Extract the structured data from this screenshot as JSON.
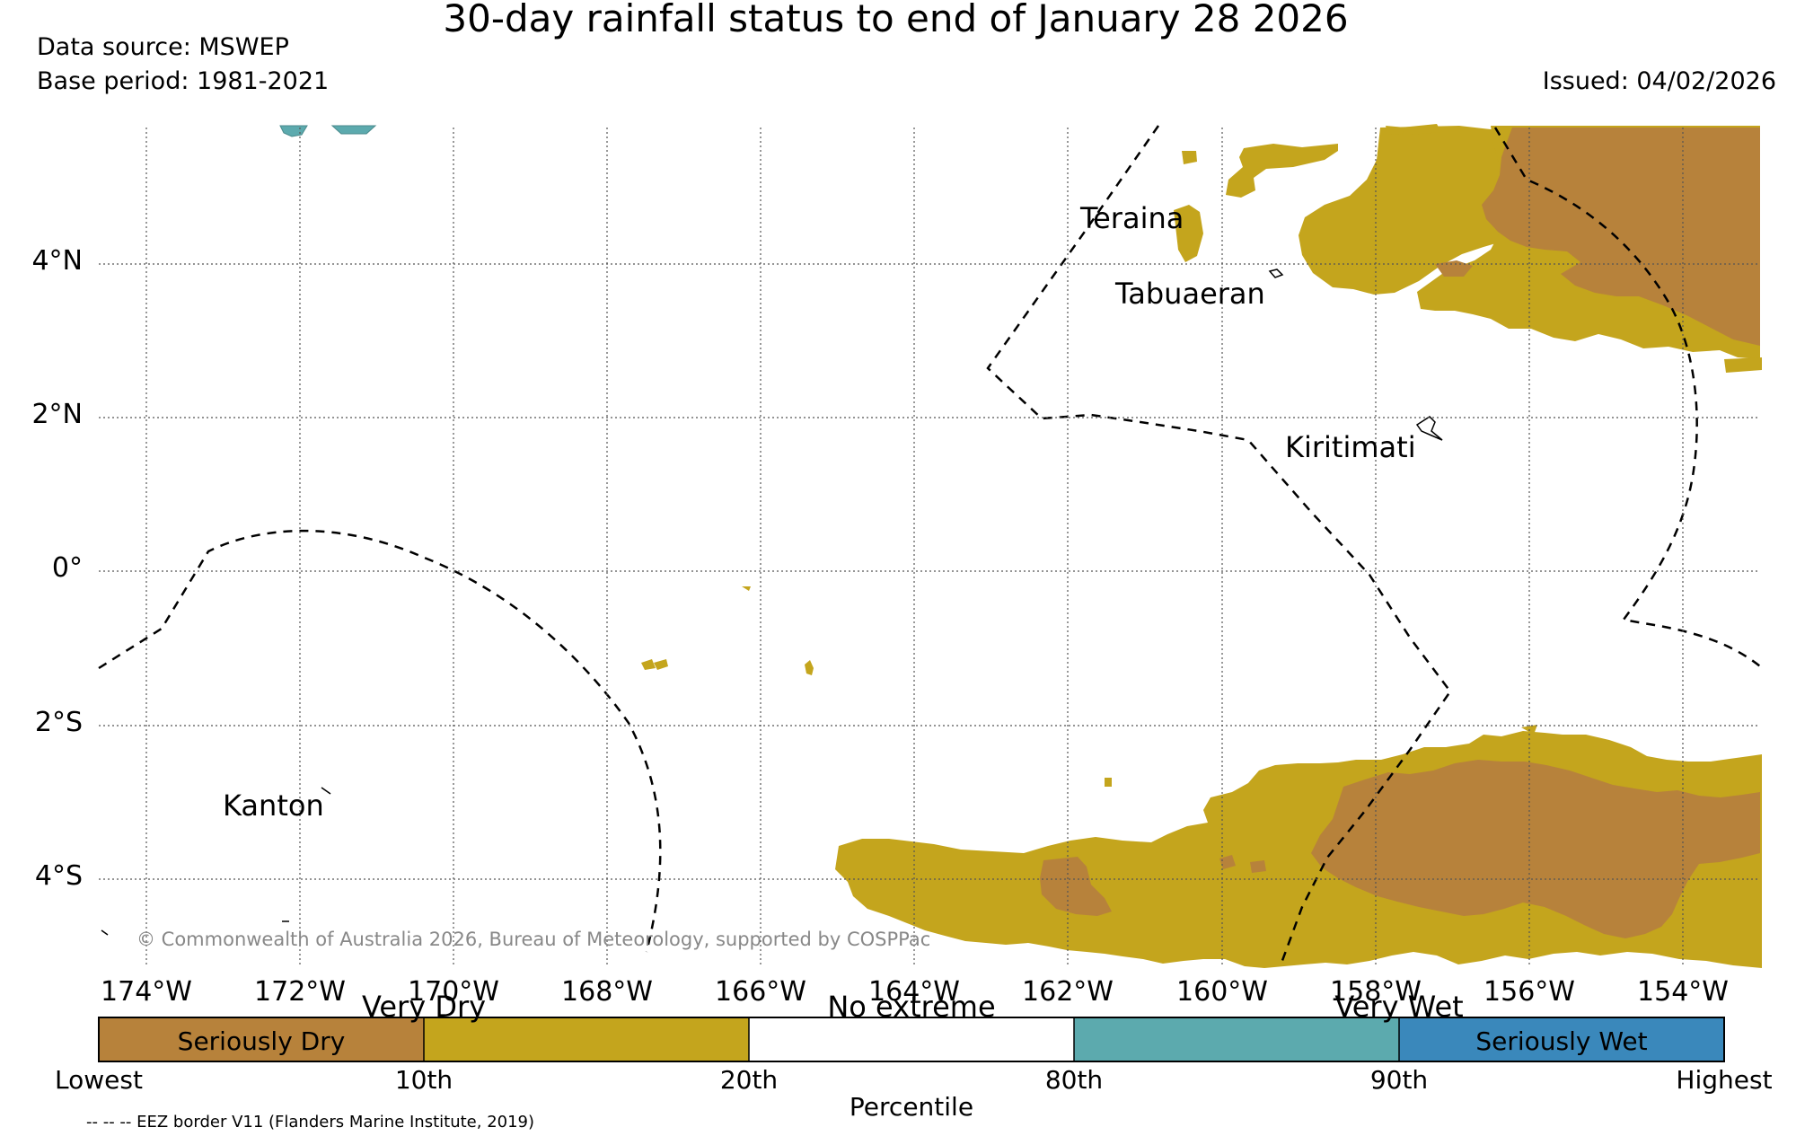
{
  "header": {
    "title": "30-day rainfall status to end of January 28 2026",
    "source": "Data source: MSWEP",
    "base_period": "Base period: 1981-2021",
    "issued": "Issued: 04/02/2026"
  },
  "map": {
    "lon_ticks": [
      "174°W",
      "172°W",
      "170°W",
      "168°W",
      "166°W",
      "164°W",
      "162°W",
      "160°W",
      "158°W",
      "156°W",
      "154°W"
    ],
    "lat_ticks": [
      "4°N",
      "2°N",
      "0°",
      "2°S",
      "4°S"
    ],
    "places": [
      "Teraina",
      "Tabuaeran",
      "Kiritimati",
      "Kanton"
    ],
    "credit": "© Commonwealth of Australia 2026, Bureau of Meteorology, supported by COSPPac"
  },
  "legend": {
    "categories": [
      "Very Dry",
      "No extreme",
      "Very Wet"
    ],
    "classes": [
      "Seriously Dry",
      "Seriously Wet"
    ],
    "percentiles": [
      "Lowest",
      "10th",
      "20th",
      "80th",
      "90th",
      "Highest"
    ],
    "axis_label": "Percentile",
    "colors": {
      "seriously_dry": "#b7823b",
      "very_dry": "#c4a51d",
      "no_extreme": "#ffffff",
      "very_wet": "#5caaae",
      "seriously_wet": "#3a88bb"
    }
  },
  "footnote": "-- -- -- EEZ border V11 (Flanders Marine Institute, 2019)"
}
